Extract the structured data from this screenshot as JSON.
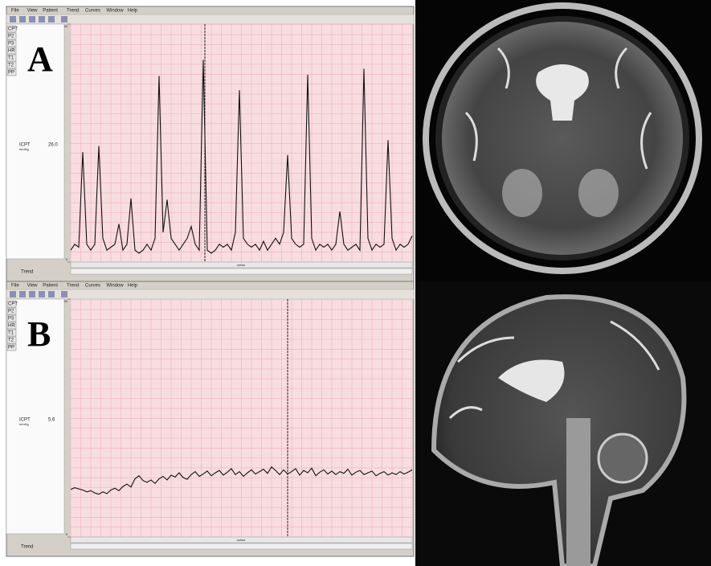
{
  "panels": [
    {
      "label": "A",
      "menu": [
        "File",
        "View",
        "Patient",
        "Trend",
        "Curves",
        "Window",
        "Help"
      ],
      "side_buttons": [
        "CPT",
        "P2",
        "P3",
        "HR",
        "T1",
        "T2",
        "PP"
      ],
      "channel": "ICPT",
      "unit": "mmHg",
      "reading": "26.0",
      "ylim": [
        0,
        40
      ],
      "yticks": [
        0,
        40
      ],
      "footer": "Trend",
      "status": "online",
      "trace": [
        2,
        3,
        2.5,
        18.5,
        3,
        2,
        3,
        19.5,
        4,
        2,
        2.5,
        3,
        6.4,
        2,
        3,
        10.7,
        2,
        1.5,
        2,
        3,
        2,
        4,
        31.3,
        5,
        10.5,
        4,
        3,
        2,
        3,
        4,
        6,
        3,
        2,
        34,
        2,
        1.5,
        2,
        3,
        2.5,
        3,
        2,
        5,
        28.9,
        4,
        3,
        2.5,
        3,
        2,
        3.5,
        2,
        3,
        4,
        3,
        5,
        18,
        4,
        3,
        2.5,
        3,
        31.5,
        4,
        2,
        3,
        2.5,
        3,
        2,
        3,
        8.5,
        3,
        2,
        2.5,
        3,
        2,
        32.5,
        4,
        2,
        3,
        2.5,
        3,
        20.5,
        4,
        2,
        3,
        2.5,
        3,
        4.4
      ]
    },
    {
      "label": "B",
      "menu": [
        "File",
        "View",
        "Patient",
        "Trend",
        "Curves",
        "Window",
        "Help"
      ],
      "side_buttons": [
        "CPT",
        "P2",
        "P3",
        "HR",
        "T1",
        "T2",
        "PP"
      ],
      "channel": "ICPT",
      "unit": "mmHg",
      "reading": "5.6",
      "ylim": [
        0,
        40
      ],
      "yticks": [
        0,
        40
      ],
      "footer": "Trend",
      "status": "online",
      "trace": [
        8,
        8.3,
        8.1,
        7.9,
        7.6,
        7.8,
        7.4,
        7.2,
        7.6,
        7.3,
        7.9,
        8.2,
        7.8,
        8.5,
        8.9,
        8.4,
        9.8,
        10.3,
        9.5,
        9.2,
        9.6,
        9.0,
        9.8,
        10.2,
        9.6,
        10.4,
        10.1,
        10.8,
        10.0,
        9.7,
        10.5,
        11.0,
        10.2,
        10.6,
        11.1,
        10.3,
        10.8,
        11.2,
        10.4,
        10.9,
        11.5,
        10.5,
        11.0,
        10.2,
        10.8,
        11.3,
        10.6,
        11.0,
        11.4,
        10.7,
        11.8,
        11.2,
        10.5,
        11.3,
        10.6,
        11.0,
        11.5,
        10.4,
        11.2,
        10.8,
        11.6,
        10.3,
        10.9,
        11.3,
        10.6,
        11.1,
        10.5,
        11.0,
        10.7,
        11.4,
        10.4,
        10.9,
        11.2,
        10.5,
        10.8,
        11.1,
        10.3,
        10.7,
        11.0,
        10.4,
        10.8,
        10.5,
        11.0,
        10.6,
        10.9,
        11.3
      ]
    }
  ]
}
